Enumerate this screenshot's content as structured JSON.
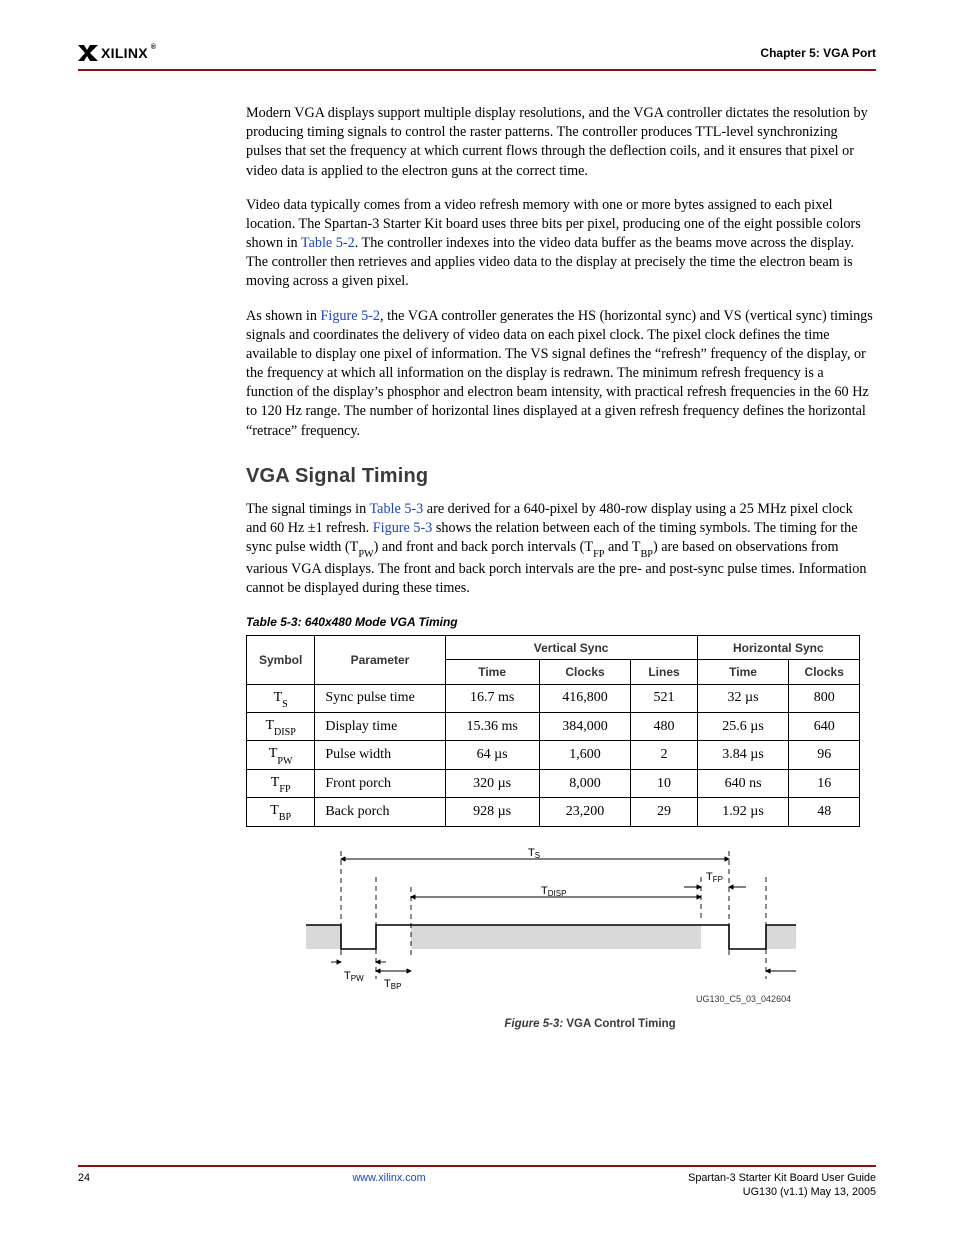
{
  "header": {
    "logoText": "XILINX",
    "logoR": "®",
    "chapter": "Chapter 5:",
    "chapter_title": " VGA Port",
    "rule_color": "#8b0f0f"
  },
  "body": {
    "p1": "Modern VGA displays support multiple display resolutions, and the VGA controller dictates the resolution by producing timing signals to control the raster patterns. The controller produces TTL-level synchronizing pulses that set the frequency at which current flows through the deflection coils, and it ensures that pixel or video data is applied to the electron guns at the correct time.",
    "p2a": "Video data typically comes from a video refresh memory with one or more bytes assigned to each pixel location. The Spartan-3 Starter Kit board uses three bits per pixel, producing one of the eight possible colors shown in ",
    "p2link": "Table 5-2",
    "p2b": ". The controller indexes into the video data buffer as the beams move across the display. The controller then retrieves and applies video data to the display at precisely the time the electron beam is moving across a given pixel.",
    "p3a": "As shown in ",
    "p3link": "Figure 5-2",
    "p3b": ", the VGA controller generates the HS (horizontal sync) and VS (vertical sync) timings signals and coordinates the delivery of video data on each pixel clock. The pixel clock defines the time available to display one pixel of information. The VS signal defines the “refresh” frequency of the display, or the frequency at which all information on the display is redrawn. The minimum refresh frequency is a function of the display’s phosphor and electron beam intensity, with practical refresh frequencies in the 60 Hz to 120 Hz range. The number of horizontal lines displayed at a given refresh frequency defines the horizontal “retrace” frequency.",
    "h2": "VGA Signal Timing",
    "p4a": "The signal timings in ",
    "p4link1": "Table 5-3",
    "p4b": " are derived for a 640-pixel by 480-row display using a 25 MHz pixel clock and 60 Hz ±1 refresh. ",
    "p4link2": "Figure 5-3",
    "p4c": " shows the relation between each of the timing symbols. The timing for the sync pulse width (T",
    "p4sub1": "PW",
    "p4d": ") and front and back porch intervals (T",
    "p4sub2": "FP",
    "p4e": " and T",
    "p4sub3": "BP",
    "p4f": ") are based on observations from various VGA displays. The front and back porch intervals are the pre- and post-sync pulse times. Information cannot be displayed during these times."
  },
  "table": {
    "title_lead": "Table 5-3:",
    "title_rest": "640x480 Mode VGA Timing",
    "head": {
      "c1": "Symbol",
      "c2": "Parameter",
      "v": "Vertical Sync",
      "h": "Horizontal Sync",
      "vt": "Time",
      "vc": "Clocks",
      "vl": "Lines",
      "ht": "Time",
      "hc": "Clocks"
    },
    "rows": [
      {
        "sym": "S",
        "label": "Sync pulse time",
        "vt": "16.7 ms",
        "vc": "416,800",
        "vl": "521",
        "ht": "32 µs",
        "hc": "800"
      },
      {
        "sym": "DISP",
        "label": "Display time",
        "vt": "15.36 ms",
        "vc": "384,000",
        "vl": "480",
        "ht": "25.6 µs",
        "hc": "640"
      },
      {
        "sym": "PW",
        "label": "Pulse width",
        "vt": "64 µs",
        "vc": "1,600",
        "vl": "2",
        "ht": "3.84 µs",
        "hc": "96"
      },
      {
        "sym": "FP",
        "label": "Front porch",
        "vt": "320 µs",
        "vc": "8,000",
        "vl": "10",
        "ht": "640 ns",
        "hc": "16"
      },
      {
        "sym": "BP",
        "label": "Back porch",
        "vt": "928 µs",
        "vc": "23,200",
        "vl": "29",
        "ht": "1.92 µs",
        "hc": "48"
      }
    ]
  },
  "figure": {
    "labels": {
      "ts": "T",
      "ts_sub": "S",
      "tfp": "T",
      "tfp_sub": "FP",
      "tdisp": "T",
      "tdisp_sub": "DISP",
      "tpw": "T",
      "tpw_sub": "PW",
      "tbp": "T",
      "tbp_sub": "BP"
    },
    "ugid": "UG130_C5_03_042604",
    "caption_lead": "Figure 5-3:",
    "caption_rest": "VGA Control Timing",
    "colors": {
      "fill": "#d9d9d9",
      "stroke": "#000000"
    }
  },
  "footer": {
    "page": "24",
    "center_label": "www.xilinx.com",
    "r1": "Spartan-3 Starter Kit Board User Guide",
    "r2": "UG130 (v1.1) May 13, 2005",
    "center_href_text": "www.xilinx.com"
  }
}
